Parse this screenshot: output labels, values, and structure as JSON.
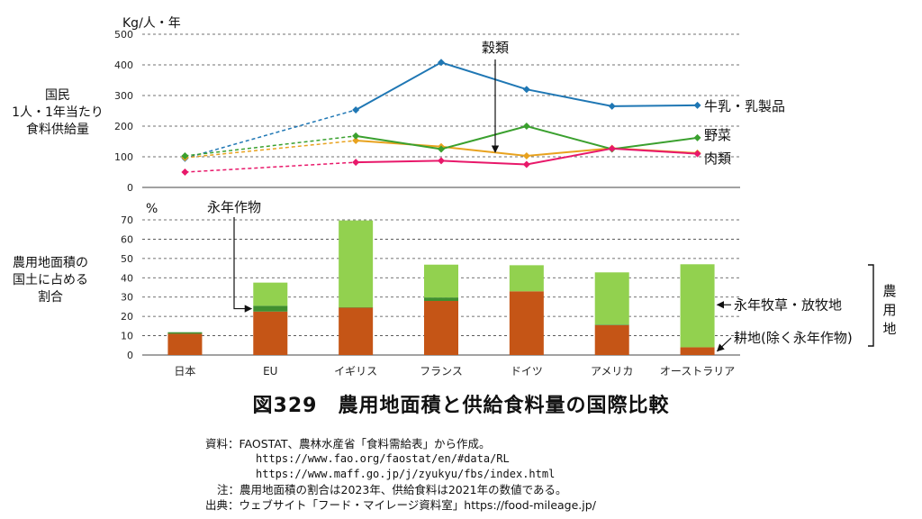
{
  "chart_data": [
    {
      "type": "line",
      "unit": "Kg/人・年",
      "ylabel": "国民\n1人・1年当たり\n食料供給量",
      "ylim": [
        0,
        500
      ],
      "yticks": [
        0,
        100,
        200,
        300,
        400,
        500
      ],
      "grid": true,
      "categories": [
        "日本",
        "EU",
        "イギリス",
        "フランス",
        "ドイツ",
        "アメリカ",
        "オーストラリア"
      ],
      "dashed_segment": "日本→イギリス",
      "series": [
        {
          "name": "牛乳・乳製品",
          "color": "#1f77b4",
          "values": [
            95,
            null,
            253,
            408,
            320,
            265,
            268
          ]
        },
        {
          "name": "穀類",
          "color": "#e8a21e",
          "values": [
            97,
            null,
            153,
            133,
            103,
            128,
            112
          ]
        },
        {
          "name": "野菜",
          "color": "#3aa02e",
          "values": [
            103,
            null,
            168,
            125,
            200,
            125,
            162
          ]
        },
        {
          "name": "肉類",
          "color": "#e8186a",
          "values": [
            50,
            null,
            82,
            87,
            75,
            127,
            110
          ]
        }
      ],
      "annotations": [
        "穀類"
      ]
    },
    {
      "type": "bar",
      "stacked": true,
      "unit": "%",
      "ylabel": "農用地面積の\n国土に占める\n割合",
      "ylim": [
        0,
        70
      ],
      "yticks": [
        0,
        10,
        20,
        30,
        40,
        50,
        60,
        70
      ],
      "grid": true,
      "categories": [
        "日本",
        "EU",
        "イギリス",
        "フランス",
        "ドイツ",
        "アメリカ",
        "オーストラリア"
      ],
      "series": [
        {
          "name": "耕地(除く永年作物)",
          "color": "#c55516",
          "values": [
            11,
            22.5,
            24.5,
            28,
            33,
            15.5,
            4
          ]
        },
        {
          "name": "永年作物",
          "color": "#3f8f2f",
          "values": [
            0.8,
            3,
            0.2,
            1.8,
            0,
            0.3,
            0
          ]
        },
        {
          "name": "永年牧草・放牧地",
          "color": "#92d14f",
          "values": [
            0,
            12,
            45,
            17,
            13.5,
            27,
            43
          ]
        }
      ],
      "annotations": [
        "永年作物",
        "永年牧草・放牧地",
        "耕地(除く永年作物)"
      ],
      "bracket_label": [
        "農",
        "用",
        "地"
      ]
    }
  ],
  "figure": {
    "title": "図329　農用地面積と供給食料量の国際比較",
    "notes": {
      "source_label": "資料：",
      "source_text": "FAOSTAT、農林水産省「食料需給表」から作成。",
      "url1": "https://www.fao.org/faostat/en/#data/RL",
      "url2": "https://www.maff.go.jp/j/zyukyu/fbs/index.html",
      "note_label": "注：",
      "note_text": "農用地面積の割合は2023年、供給食料は2021年の数値である。",
      "origin_label": "出典：",
      "origin_text": "ウェブサイト「フード・マイレージ資料室」https://food-mileage.jp/"
    }
  }
}
